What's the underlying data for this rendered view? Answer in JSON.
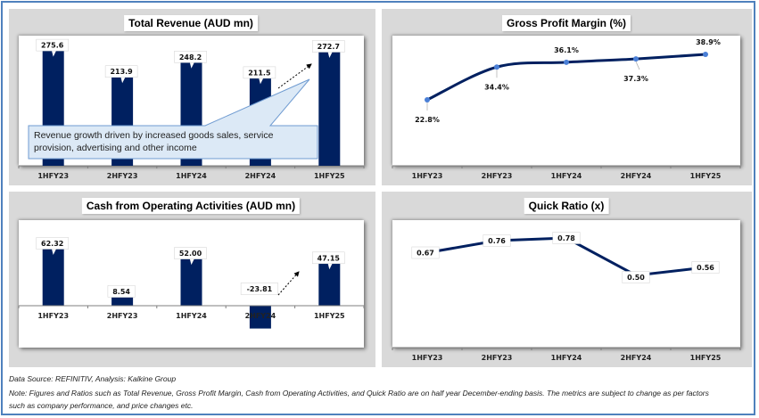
{
  "footer": {
    "source": "Data Source: REFINITIV, Analysis: Kalkine Group",
    "note_line1": "Note: Figures and Ratios such as Total Revenue, Gross Profit Margin, Cash from Operating Activities, and Quick Ratio are on half year December-ending basis. The metrics are subject to change as per factors",
    "note_line2": "such as company performance, and price changes etc."
  },
  "colors": {
    "bar": "#002060",
    "line": "#002060",
    "marker": "#4a7fd6",
    "frame": "#4f81bd",
    "panel_bg": "#d9d9d9",
    "callout_bg": "#dce9f6",
    "callout_border": "#6f9bd1"
  },
  "callout": {
    "text_line1": "Revenue growth driven by increased goods sales, service",
    "text_line2": "provision, advertising and other income"
  },
  "chart_data": [
    {
      "id": "revenue",
      "type": "bar",
      "title": "Total Revenue (AUD mn)",
      "categories": [
        "1HFY23",
        "2HFY23",
        "1HFY24",
        "2HFY24",
        "1HFY25"
      ],
      "values": [
        275.6,
        213.9,
        248.2,
        211.5,
        272.7
      ],
      "labels": [
        "275.6",
        "213.9",
        "248.2",
        "211.5",
        "272.7"
      ],
      "xlabel": "",
      "ylabel": "",
      "ylim": [
        0,
        290
      ],
      "grid": false,
      "legend": "none",
      "annotations": [
        "Revenue growth driven by increased goods sales, service provision, advertising and other income",
        "dashed trend arrow toward 1HFY25"
      ]
    },
    {
      "id": "gpm",
      "type": "line",
      "title": "Gross Profit Margin (%)",
      "categories": [
        "1HFY23",
        "2HFY23",
        "1HFY24",
        "2HFY24",
        "1HFY25"
      ],
      "values": [
        22.8,
        34.4,
        36.1,
        37.3,
        38.9
      ],
      "labels": [
        "22.8%",
        "34.4%",
        "36.1%",
        "37.3%",
        "38.9%"
      ],
      "xlabel": "",
      "ylabel": "",
      "ylim": [
        0,
        45
      ],
      "grid": false,
      "legend": "none"
    },
    {
      "id": "cfo",
      "type": "bar",
      "title": "Cash from Operating Activities (AUD mn)",
      "categories": [
        "1HFY23",
        "2HFY23",
        "1HFY24",
        "2HFY24",
        "1HFY25"
      ],
      "values": [
        62.32,
        8.54,
        52.0,
        -23.81,
        47.15
      ],
      "labels": [
        "62.32",
        "8.54",
        "52.00",
        "-23.81",
        "47.15"
      ],
      "xlabel": "",
      "ylabel": "",
      "ylim": [
        -40,
        70
      ],
      "grid": false,
      "legend": "none",
      "annotations": [
        "dashed trend arrow toward 1HFY25"
      ]
    },
    {
      "id": "quick",
      "type": "line",
      "title": "Quick Ratio (x)",
      "categories": [
        "1HFY23",
        "2HFY23",
        "1HFY24",
        "2HFY24",
        "1HFY25"
      ],
      "values": [
        0.67,
        0.76,
        0.78,
        0.5,
        0.56
      ],
      "labels": [
        "0.67",
        "0.76",
        "0.78",
        "0.50",
        "0.56"
      ],
      "xlabel": "",
      "ylabel": "",
      "ylim": [
        0,
        0.95
      ],
      "grid": false,
      "legend": "none"
    }
  ]
}
